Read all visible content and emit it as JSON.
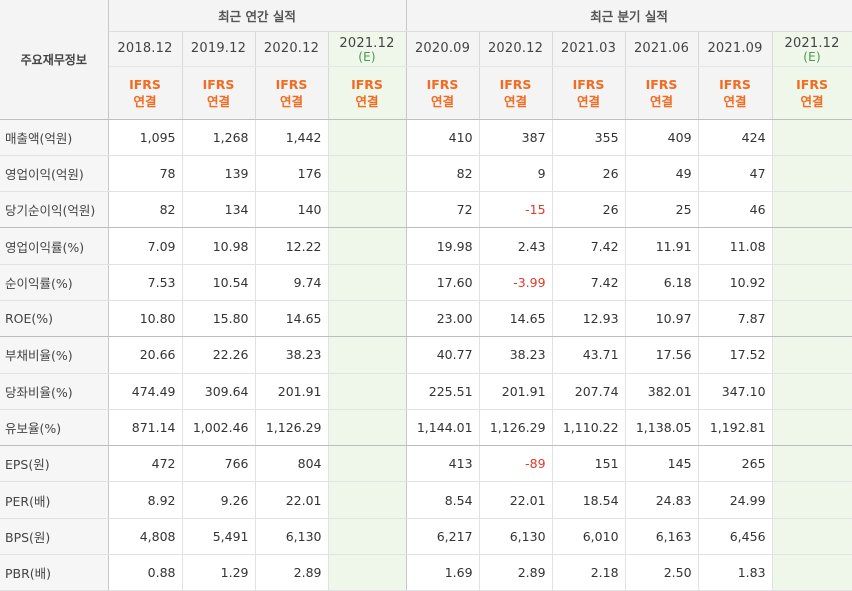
{
  "header": {
    "row_label": "주요재무정보",
    "annual_title": "최근 연간 실적",
    "quarter_title": "최근 분기 실적",
    "annual_periods": [
      {
        "date": "2018.12",
        "est": ""
      },
      {
        "date": "2019.12",
        "est": ""
      },
      {
        "date": "2020.12",
        "est": ""
      },
      {
        "date": "2021.12",
        "est": "(E)"
      }
    ],
    "quarter_periods": [
      {
        "date": "2020.09",
        "est": ""
      },
      {
        "date": "2020.12",
        "est": ""
      },
      {
        "date": "2021.03",
        "est": ""
      },
      {
        "date": "2021.06",
        "est": ""
      },
      {
        "date": "2021.09",
        "est": ""
      },
      {
        "date": "2021.12",
        "est": "(E)"
      }
    ],
    "ifrs_line1": "IFRS",
    "ifrs_line2": "연결"
  },
  "rows": [
    {
      "label": "매출액(억원)",
      "annual": [
        "1,095",
        "1,268",
        "1,442",
        ""
      ],
      "quarter": [
        "410",
        "387",
        "355",
        "409",
        "424",
        ""
      ]
    },
    {
      "label": "영업이익(억원)",
      "annual": [
        "78",
        "139",
        "176",
        ""
      ],
      "quarter": [
        "82",
        "9",
        "26",
        "49",
        "47",
        ""
      ]
    },
    {
      "label": "당기순이익(억원)",
      "annual": [
        "82",
        "134",
        "140",
        ""
      ],
      "quarter": [
        "72",
        "-15",
        "26",
        "25",
        "46",
        ""
      ]
    },
    {
      "label": "영업이익률(%)",
      "annual": [
        "7.09",
        "10.98",
        "12.22",
        ""
      ],
      "quarter": [
        "19.98",
        "2.43",
        "7.42",
        "11.91",
        "11.08",
        ""
      ]
    },
    {
      "label": "순이익률(%)",
      "annual": [
        "7.53",
        "10.54",
        "9.74",
        ""
      ],
      "quarter": [
        "17.60",
        "-3.99",
        "7.42",
        "6.18",
        "10.92",
        ""
      ]
    },
    {
      "label": "ROE(%)",
      "annual": [
        "10.80",
        "15.80",
        "14.65",
        ""
      ],
      "quarter": [
        "23.00",
        "14.65",
        "12.93",
        "10.97",
        "7.87",
        ""
      ]
    },
    {
      "label": "부채비율(%)",
      "annual": [
        "20.66",
        "22.26",
        "38.23",
        ""
      ],
      "quarter": [
        "40.77",
        "38.23",
        "43.71",
        "17.56",
        "17.52",
        ""
      ]
    },
    {
      "label": "당좌비율(%)",
      "annual": [
        "474.49",
        "309.64",
        "201.91",
        ""
      ],
      "quarter": [
        "225.51",
        "201.91",
        "207.74",
        "382.01",
        "347.10",
        ""
      ]
    },
    {
      "label": "유보율(%)",
      "annual": [
        "871.14",
        "1,002.46",
        "1,126.29",
        ""
      ],
      "quarter": [
        "1,144.01",
        "1,126.29",
        "1,110.22",
        "1,138.05",
        "1,192.81",
        ""
      ]
    },
    {
      "label": "EPS(원)",
      "annual": [
        "472",
        "766",
        "804",
        ""
      ],
      "quarter": [
        "413",
        "-89",
        "151",
        "145",
        "265",
        ""
      ]
    },
    {
      "label": "PER(배)",
      "annual": [
        "8.92",
        "9.26",
        "22.01",
        ""
      ],
      "quarter": [
        "8.54",
        "22.01",
        "18.54",
        "24.83",
        "24.99",
        ""
      ]
    },
    {
      "label": "BPS(원)",
      "annual": [
        "4,808",
        "5,491",
        "6,130",
        ""
      ],
      "quarter": [
        "6,217",
        "6,130",
        "6,010",
        "6,163",
        "6,456",
        ""
      ]
    },
    {
      "label": "PBR(배)",
      "annual": [
        "0.88",
        "1.29",
        "2.89",
        ""
      ],
      "quarter": [
        "1.69",
        "2.89",
        "2.18",
        "2.50",
        "1.83",
        ""
      ]
    }
  ],
  "colors": {
    "ifrs": "#f26b21",
    "negative": "#e03a2a",
    "estimate_bg": "#eef7ea",
    "header_bg": "#f4f4f4"
  }
}
